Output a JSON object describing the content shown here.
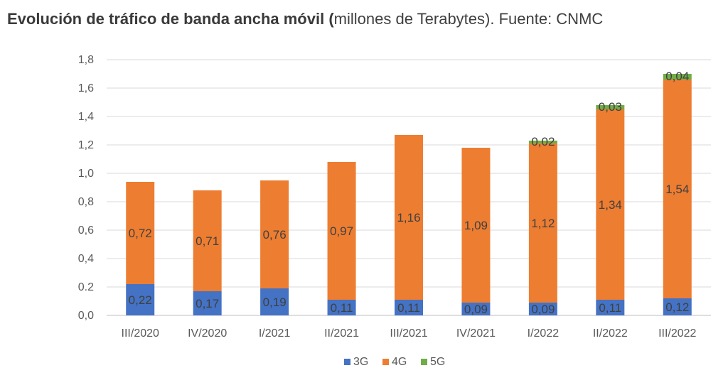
{
  "title": {
    "bold": "Evolución de tráfico de banda ancha móvil (",
    "normal": "millones de Terabytes). Fuente: CNMC"
  },
  "chart_data": {
    "type": "bar",
    "stacked": true,
    "categories": [
      "III/2020",
      "IV/2020",
      "I/2021",
      "II/2021",
      "III/2021",
      "IV/2021",
      "I/2022",
      "II/2022",
      "III/2022"
    ],
    "series": [
      {
        "name": "3G",
        "color": "#4472c4",
        "values": [
          0.22,
          0.17,
          0.19,
          0.11,
          0.11,
          0.09,
          0.09,
          0.11,
          0.12
        ],
        "labels": [
          "0,22",
          "0,17",
          "0,19",
          "0,11",
          "0,11",
          "0,09",
          "0,09",
          "0,11",
          "0,12"
        ]
      },
      {
        "name": "4G",
        "color": "#ed7d31",
        "values": [
          0.72,
          0.71,
          0.76,
          0.97,
          1.16,
          1.09,
          1.12,
          1.34,
          1.54
        ],
        "labels": [
          "0,72",
          "0,71",
          "0,76",
          "0,97",
          "1,16",
          "1,09",
          "1,12",
          "1,34",
          "1,54"
        ]
      },
      {
        "name": "5G",
        "color": "#70ad47",
        "values": [
          0,
          0,
          0,
          0,
          0,
          0,
          0.02,
          0.03,
          0.04
        ],
        "labels": [
          "",
          "",
          "",
          "",
          "",
          "",
          "0,02",
          "0,03",
          "0,04"
        ]
      }
    ],
    "ylim": [
      0,
      1.8
    ],
    "yticks": [
      "0,0",
      "0.2",
      "0,4",
      "0,6",
      "0,8",
      "1,0",
      "1,2",
      "1,4",
      "1,6",
      "1,8"
    ],
    "grid": true,
    "legend": "bottom"
  }
}
